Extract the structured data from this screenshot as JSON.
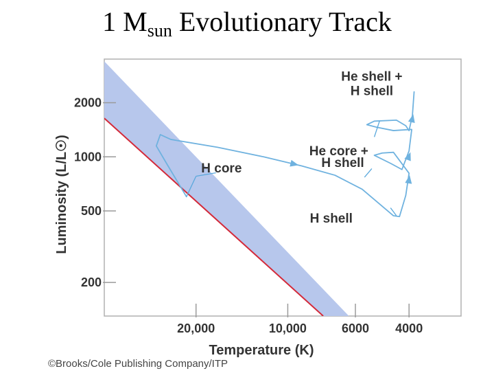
{
  "slide": {
    "title_main": "1 M",
    "title_sub": "sun",
    "title_rest": " Evolutionary Track"
  },
  "chart_data": {
    "type": "line",
    "xlabel": "Temperature (K)",
    "ylabel": "Luminosity (L/L☉)",
    "x_scale": "log",
    "x_reversed": true,
    "y_scale": "log",
    "xlim": [
      40000,
      2700
    ],
    "ylim": [
      130,
      3500
    ],
    "x_ticks": [
      {
        "value": 20000,
        "label": "20,000"
      },
      {
        "value": 10000,
        "label": "10,000"
      },
      {
        "value": 6000,
        "label": "6000"
      },
      {
        "value": 4000,
        "label": "4000"
      }
    ],
    "y_ticks": [
      {
        "value": 2000,
        "label": "2000"
      },
      {
        "value": 1000,
        "label": "1000"
      },
      {
        "value": 500,
        "label": "500"
      },
      {
        "value": 200,
        "label": "200"
      }
    ],
    "main_sequence_band": {
      "lower_edge": [
        [
          40000,
          1640
        ],
        [
          7650,
          130
        ]
      ],
      "upper_edge": [
        [
          40000,
          3400
        ],
        [
          6300,
          130
        ]
      ],
      "color": "#b7c7ec"
    },
    "zams_line": {
      "points": [
        [
          40000,
          1640
        ],
        [
          7650,
          130
        ]
      ],
      "color": "#d42a3a"
    },
    "track": {
      "color": "#6fb2df",
      "points": [
        [
          21500,
          600
        ],
        [
          25000,
          920
        ],
        [
          27000,
          1150
        ],
        [
          26200,
          1330
        ],
        [
          24200,
          1250
        ],
        [
          17000,
          1130
        ],
        [
          12000,
          1000
        ],
        [
          9000,
          890
        ],
        [
          7000,
          790
        ],
        [
          5700,
          660
        ],
        [
          4500,
          470
        ],
        [
          4300,
          465
        ],
        [
          4100,
          610
        ],
        [
          4000,
          810
        ],
        [
          4500,
          1060
        ],
        [
          4900,
          1050
        ],
        [
          5200,
          1020
        ],
        [
          4600,
          920
        ],
        [
          4220,
          850
        ],
        [
          4000,
          1080
        ],
        [
          3920,
          1420
        ],
        [
          3950,
          1420
        ],
        [
          4500,
          1400
        ],
        [
          5100,
          1460
        ],
        [
          5500,
          1510
        ],
        [
          5200,
          1580
        ],
        [
          4400,
          1600
        ],
        [
          4100,
          1490
        ],
        [
          4000,
          1400
        ],
        [
          3900,
          1700
        ],
        [
          3850,
          2300
        ]
      ],
      "arrows_at": [
        [
          9500,
          910
        ],
        [
          4000,
          750
        ],
        [
          4000,
          1010
        ],
        [
          3900,
          1640
        ]
      ]
    },
    "annotations": [
      {
        "text": "H core",
        "at": [
          16500,
          820
        ]
      },
      {
        "text": "He core +",
        "at": [
          6800,
          1020
        ]
      },
      {
        "text": "H shell",
        "at": [
          6600,
          880
        ]
      },
      {
        "text": "He shell +",
        "at": [
          5300,
          2650
        ]
      },
      {
        "text": "H shell",
        "at": [
          5300,
          2200
        ]
      },
      {
        "text": "H shell",
        "at": [
          7200,
          430
        ]
      }
    ],
    "credit": "©Brooks/Cole Publishing Company/ITP"
  }
}
